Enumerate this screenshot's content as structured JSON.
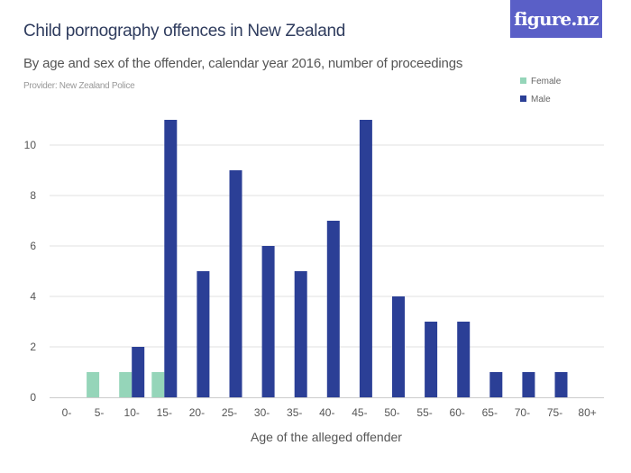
{
  "header": {
    "title": "Child pornography offences in New Zealand",
    "subtitle": "By age and sex of the offender, calendar year 2016, number of proceedings",
    "provider": "Provider: New Zealand Police",
    "logo": "figure.nz"
  },
  "chart_data": {
    "type": "bar",
    "title": "Child pornography offences in New Zealand",
    "xlabel": "Age of the alleged offender",
    "ylabel": "",
    "categories": [
      "0-",
      "5-",
      "10-",
      "15-",
      "20-",
      "25-",
      "30-",
      "35-",
      "40-",
      "45-",
      "50-",
      "55-",
      "60-",
      "65-",
      "70-",
      "75-",
      "80+"
    ],
    "series": [
      {
        "name": "Female",
        "color": "#95d5b9",
        "values": [
          0,
          1,
          1,
          1,
          0,
          0,
          0,
          0,
          0,
          0,
          0,
          0,
          0,
          0,
          0,
          0,
          0
        ]
      },
      {
        "name": "Male",
        "color": "#2b3f96",
        "values": [
          0,
          0,
          2,
          11,
          5,
          9,
          6,
          5,
          7,
          11,
          4,
          3,
          3,
          1,
          1,
          1,
          0
        ]
      }
    ],
    "ylim": [
      0,
      11
    ],
    "yticks": [
      0,
      2,
      4,
      6,
      8,
      10
    ],
    "grid": true,
    "legend": "top-right"
  }
}
